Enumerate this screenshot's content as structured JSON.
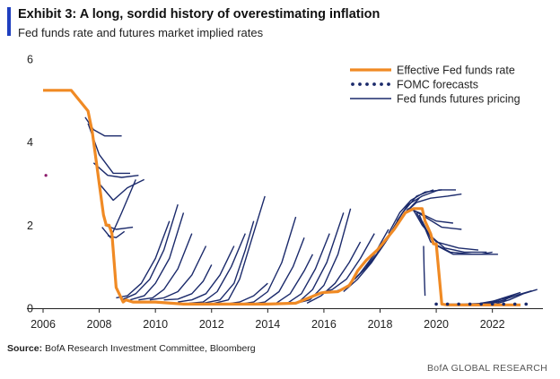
{
  "header": {
    "title": "Exhibit 3: A long, sordid history of overestimating inflation",
    "subtitle": "Fed funds rate and futures market implied rates"
  },
  "footer": {
    "source_label": "Source:",
    "source_text": "BofA Research Investment Committee, Bloomberg",
    "brand": "BofA GLOBAL RESEARCH"
  },
  "colors": {
    "effective_rate": "#f08a24",
    "futures": "#1b2a6b",
    "fomc": "#1b2a6b",
    "outlier_dot": "#8b1a6b",
    "axis": "#222222"
  },
  "chart_data": {
    "type": "line",
    "title": "Fed funds rate and futures market implied rates",
    "xlabel": "",
    "ylabel": "",
    "xlim": [
      2006,
      2023.8
    ],
    "ylim": [
      0,
      6
    ],
    "x_ticks": [
      2006,
      2008,
      2010,
      2012,
      2014,
      2016,
      2018,
      2020,
      2022
    ],
    "y_ticks": [
      0,
      2,
      4,
      6
    ],
    "legend": {
      "position": "top-right",
      "entries": [
        {
          "name": "Effective Fed funds rate",
          "style": "orange-line"
        },
        {
          "name": "FOMC forecasts",
          "style": "navy-dots"
        },
        {
          "name": "Fed funds futures pricing",
          "style": "navy-line"
        }
      ]
    },
    "effective_fed_funds_rate": {
      "x": [
        2006.0,
        2006.5,
        2007.0,
        2007.6,
        2007.75,
        2007.9,
        2008.0,
        2008.15,
        2008.25,
        2008.35,
        2008.45,
        2008.6,
        2008.85,
        2008.95,
        2009.2,
        2010.0,
        2011.0,
        2012.0,
        2013.0,
        2014.0,
        2015.0,
        2015.9,
        2016.0,
        2016.5,
        2016.9,
        2017.0,
        2017.2,
        2017.5,
        2017.9,
        2018.2,
        2018.5,
        2018.9,
        2019.2,
        2019.5,
        2019.6,
        2019.8,
        2019.9,
        2020.0,
        2020.2,
        2020.4,
        2021.0,
        2022.0,
        2023.0
      ],
      "y": [
        5.25,
        5.25,
        5.25,
        4.75,
        4.25,
        3.5,
        3.0,
        2.25,
        2.0,
        2.0,
        1.8,
        0.5,
        0.15,
        0.2,
        0.15,
        0.15,
        0.1,
        0.1,
        0.1,
        0.1,
        0.12,
        0.37,
        0.38,
        0.4,
        0.55,
        0.65,
        0.9,
        1.15,
        1.4,
        1.65,
        1.9,
        2.3,
        2.4,
        2.4,
        2.1,
        1.8,
        1.55,
        1.55,
        0.1,
        0.08,
        0.08,
        0.08,
        0.08
      ]
    },
    "fomc_forecasts": {
      "x": [
        2020.0,
        2020.4,
        2020.8,
        2021.2,
        2021.6,
        2022.0,
        2022.4,
        2022.8,
        2023.2
      ],
      "y": [
        0.1,
        0.1,
        0.1,
        0.1,
        0.1,
        0.1,
        0.1,
        0.1,
        0.1
      ]
    },
    "outlier_point": {
      "x": 2006.1,
      "y": 3.2
    },
    "futures_pricing": [
      {
        "x": [
          2007.5,
          2007.8,
          2008.2,
          2008.8
        ],
        "y": [
          4.6,
          4.3,
          4.15,
          4.15
        ]
      },
      {
        "x": [
          2007.6,
          2008.0,
          2008.5,
          2009.1
        ],
        "y": [
          4.45,
          3.7,
          3.25,
          3.25
        ]
      },
      {
        "x": [
          2007.8,
          2008.3,
          2008.8,
          2009.4
        ],
        "y": [
          3.5,
          3.2,
          3.15,
          3.2
        ]
      },
      {
        "x": [
          2008.0,
          2008.5,
          2009.0,
          2009.6
        ],
        "y": [
          3.0,
          2.6,
          2.9,
          3.1
        ]
      },
      {
        "x": [
          2008.1,
          2008.4,
          2008.8,
          2009.3
        ],
        "y": [
          1.95,
          1.7,
          2.3,
          3.1
        ]
      },
      {
        "x": [
          2008.2,
          2008.6,
          2009.2
        ],
        "y": [
          2.0,
          1.9,
          1.95
        ]
      },
      {
        "x": [
          2008.3,
          2008.6,
          2008.9
        ],
        "y": [
          1.75,
          1.7,
          1.85
        ]
      },
      {
        "x": [
          2008.6,
          2009.0,
          2009.5,
          2010.0,
          2010.5
        ],
        "y": [
          0.25,
          0.3,
          0.6,
          1.2,
          2.1
        ]
      },
      {
        "x": [
          2008.8,
          2009.3,
          2009.8,
          2010.3,
          2010.8
        ],
        "y": [
          0.2,
          0.35,
          0.7,
          1.4,
          2.5
        ]
      },
      {
        "x": [
          2009.1,
          2009.6,
          2010.0,
          2010.5,
          2011.0
        ],
        "y": [
          0.2,
          0.3,
          0.6,
          1.2,
          2.3
        ]
      },
      {
        "x": [
          2009.4,
          2009.9,
          2010.3,
          2010.8,
          2011.3
        ],
        "y": [
          0.2,
          0.25,
          0.45,
          0.95,
          1.8
        ]
      },
      {
        "x": [
          2009.8,
          2010.3,
          2010.8,
          2011.3,
          2011.8
        ],
        "y": [
          0.2,
          0.25,
          0.4,
          0.8,
          1.5
        ]
      },
      {
        "x": [
          2010.3,
          2010.8,
          2011.3,
          2011.7,
          2012.0
        ],
        "y": [
          0.2,
          0.22,
          0.35,
          0.65,
          1.05
        ]
      },
      {
        "x": [
          2010.8,
          2011.3,
          2011.8,
          2012.3,
          2012.8
        ],
        "y": [
          0.15,
          0.2,
          0.35,
          0.8,
          1.5
        ]
      },
      {
        "x": [
          2011.2,
          2011.7,
          2012.2,
          2012.7,
          2013.2
        ],
        "y": [
          0.12,
          0.15,
          0.4,
          1.0,
          1.8
        ]
      },
      {
        "x": [
          2011.7,
          2012.3,
          2012.8,
          2013.2,
          2013.5
        ],
        "y": [
          0.12,
          0.2,
          0.6,
          1.4,
          2.1
        ]
      },
      {
        "x": [
          2012.1,
          2012.6,
          2013.0,
          2013.4,
          2013.9
        ],
        "y": [
          0.12,
          0.2,
          0.7,
          1.6,
          2.7
        ]
      },
      {
        "x": [
          2012.5,
          2013.0,
          2013.5,
          2014.0
        ],
        "y": [
          0.1,
          0.15,
          0.3,
          0.6
        ]
      },
      {
        "x": [
          2013.0,
          2013.5,
          2014.0,
          2014.5,
          2015.0
        ],
        "y": [
          0.1,
          0.15,
          0.4,
          1.1,
          2.2
        ]
      },
      {
        "x": [
          2013.4,
          2013.9,
          2014.4,
          2014.9,
          2015.3
        ],
        "y": [
          0.1,
          0.15,
          0.4,
          1.0,
          1.7
        ]
      },
      {
        "x": [
          2013.8,
          2014.3,
          2014.8,
          2015.3,
          2015.6
        ],
        "y": [
          0.1,
          0.12,
          0.35,
          0.9,
          1.3
        ]
      },
      {
        "x": [
          2014.2,
          2014.7,
          2015.2,
          2015.7,
          2016.2
        ],
        "y": [
          0.1,
          0.12,
          0.35,
          0.95,
          1.8
        ]
      },
      {
        "x": [
          2014.6,
          2015.1,
          2015.6,
          2016.1,
          2016.7
        ],
        "y": [
          0.1,
          0.15,
          0.45,
          1.1,
          2.3
        ]
      },
      {
        "x": [
          2015.0,
          2015.5,
          2016.0,
          2016.5,
          2016.95
        ],
        "y": [
          0.12,
          0.2,
          0.55,
          1.3,
          2.4
        ]
      },
      {
        "x": [
          2015.4,
          2015.9,
          2016.4,
          2016.9,
          2017.3
        ],
        "y": [
          0.12,
          0.3,
          0.6,
          1.1,
          1.6
        ]
      },
      {
        "x": [
          2015.8,
          2016.3,
          2016.8,
          2017.3,
          2017.8
        ],
        "y": [
          0.35,
          0.45,
          0.7,
          1.2,
          1.8
        ]
      },
      {
        "x": [
          2016.3,
          2016.8,
          2017.3,
          2017.8,
          2018.3
        ],
        "y": [
          0.38,
          0.5,
          0.85,
          1.3,
          1.9
        ]
      },
      {
        "x": [
          2016.7,
          2017.2,
          2017.7,
          2018.2,
          2018.7
        ],
        "y": [
          0.4,
          0.7,
          1.1,
          1.6,
          2.2
        ]
      },
      {
        "x": [
          2017.1,
          2017.6,
          2018.1,
          2018.6,
          2019.0
        ],
        "y": [
          0.7,
          1.05,
          1.5,
          2.0,
          2.4
        ]
      },
      {
        "x": [
          2017.5,
          2018.0,
          2018.5,
          2018.9,
          2019.4
        ],
        "y": [
          1.0,
          1.4,
          1.9,
          2.3,
          2.65
        ]
      },
      {
        "x": [
          2017.9,
          2018.4,
          2018.8,
          2019.3,
          2019.9
        ],
        "y": [
          1.35,
          1.85,
          2.3,
          2.7,
          2.85
        ]
      },
      {
        "x": [
          2018.3,
          2018.7,
          2019.1,
          2019.6,
          2020.2
        ],
        "y": [
          1.8,
          2.3,
          2.6,
          2.8,
          2.85
        ]
      },
      {
        "x": [
          2018.6,
          2019.0,
          2019.5,
          2020.1,
          2020.7
        ],
        "y": [
          2.1,
          2.5,
          2.7,
          2.85,
          2.85
        ]
      },
      {
        "x": [
          2018.9,
          2019.3,
          2019.8,
          2020.4,
          2020.9
        ],
        "y": [
          2.3,
          2.55,
          2.65,
          2.7,
          2.75
        ]
      },
      {
        "x": [
          2019.0,
          2019.4,
          2020.0,
          2020.6
        ],
        "y": [
          2.4,
          2.3,
          2.1,
          2.05
        ]
      },
      {
        "x": [
          2019.1,
          2019.6,
          2020.2,
          2020.9
        ],
        "y": [
          2.4,
          2.2,
          1.95,
          1.9
        ]
      },
      {
        "x": [
          2019.2,
          2019.5,
          2020.0,
          2020.8,
          2021.5
        ],
        "y": [
          2.35,
          2.0,
          1.6,
          1.45,
          1.4
        ]
      },
      {
        "x": [
          2019.3,
          2019.7,
          2020.3,
          2021.0,
          2021.8
        ],
        "y": [
          2.3,
          1.8,
          1.45,
          1.35,
          1.35
        ]
      },
      {
        "x": [
          2019.4,
          2019.8,
          2020.5,
          2021.3,
          2022.2
        ],
        "y": [
          2.25,
          1.6,
          1.35,
          1.3,
          1.3
        ]
      },
      {
        "x": [
          2019.5,
          2019.9,
          2020.6,
          2021.6,
          2022.0
        ],
        "y": [
          2.1,
          1.55,
          1.3,
          1.3,
          1.35
        ]
      },
      {
        "x": [
          2019.55,
          2019.57,
          2019.6
        ],
        "y": [
          1.5,
          0.9,
          0.3
        ]
      },
      {
        "x": [
          2020.3,
          2021.0,
          2021.8,
          2022.5
        ],
        "y": [
          0.1,
          0.1,
          0.12,
          0.2
        ]
      },
      {
        "x": [
          2020.8,
          2021.4,
          2022.1,
          2022.8
        ],
        "y": [
          0.08,
          0.1,
          0.18,
          0.3
        ]
      },
      {
        "x": [
          2021.2,
          2021.8,
          2022.4,
          2023.0
        ],
        "y": [
          0.08,
          0.12,
          0.25,
          0.38
        ]
      },
      {
        "x": [
          2021.6,
          2022.2,
          2022.8,
          2023.4
        ],
        "y": [
          0.08,
          0.15,
          0.3,
          0.42
        ]
      },
      {
        "x": [
          2022.0,
          2022.6,
          2023.1,
          2023.6
        ],
        "y": [
          0.08,
          0.2,
          0.35,
          0.45
        ]
      }
    ]
  }
}
